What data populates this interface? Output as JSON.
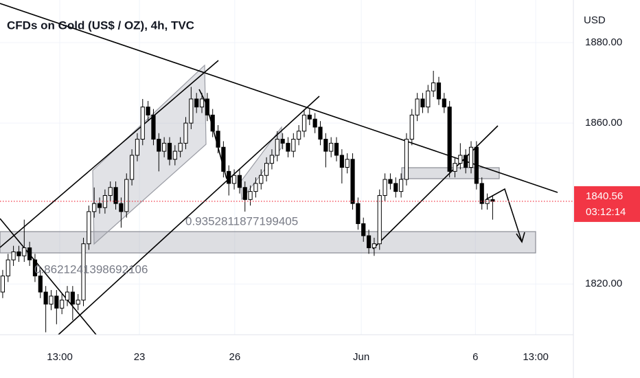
{
  "chart_data": {
    "type": "candlestick",
    "title": "CFDs on Gold (US$ / OZ), 4h, TVC",
    "y_axis_label": "USD",
    "countdown": "03:12:14",
    "annotations": [
      "0.9352811877199405",
      "0.8621241398692106"
    ],
    "up_color": "#ffffff",
    "down_color": "#000000",
    "wick_color": "#000000",
    "price_line_color": "#f23645",
    "open": [
      1818,
      1822,
      1826,
      1828,
      1827,
      1829,
      1826,
      1822,
      1818,
      1815,
      1817,
      1814,
      1816,
      1818,
      1815,
      1816,
      1830,
      1838,
      1840,
      1839,
      1842,
      1844,
      1840,
      1838,
      1846,
      1852,
      1856,
      1864,
      1862,
      1856,
      1853,
      1855,
      1851,
      1853,
      1855,
      1860,
      1866,
      1864,
      1866,
      1862,
      1858,
      1854,
      1848,
      1845,
      1847,
      1844,
      1841,
      1843,
      1845,
      1847,
      1850,
      1852,
      1856,
      1855,
      1853,
      1856,
      1858,
      1862,
      1861,
      1859,
      1856,
      1853,
      1855,
      1852,
      1849,
      1851,
      1840,
      1835,
      1832,
      1829,
      1830,
      1842,
      1846,
      1845,
      1843,
      1846,
      1856,
      1862,
      1866,
      1864,
      1868,
      1870,
      1866,
      1864,
      1848,
      1850,
      1852,
      1849,
      1854,
      1845,
      1840,
      1841
    ],
    "high": [
      1823.5,
      1827.5,
      1829.5,
      1829.5,
      1836,
      1830.5,
      1827.5,
      1823.5,
      1819.5,
      1818.5,
      1818.5,
      1817.5,
      1819.5,
      1819.5,
      1817.5,
      1831.5,
      1839.5,
      1844,
      1841.5,
      1843.5,
      1845.5,
      1845.5,
      1841.5,
      1847.5,
      1853.5,
      1857.5,
      1866,
      1865.5,
      1863.5,
      1857.5,
      1856.5,
      1856.5,
      1854.5,
      1856.5,
      1861.5,
      1869,
      1867.5,
      1867.5,
      1867.5,
      1863.5,
      1859.5,
      1855.5,
      1849.5,
      1848.5,
      1848.5,
      1845.5,
      1844.5,
      1846.5,
      1848.5,
      1851.5,
      1853.5,
      1858,
      1857.5,
      1856.5,
      1857.5,
      1859.5,
      1863.5,
      1863.5,
      1862.5,
      1860.5,
      1857.5,
      1856.5,
      1856.5,
      1853.5,
      1852.5,
      1852.5,
      1841.5,
      1836.5,
      1833.5,
      1831.5,
      1843.5,
      1847.5,
      1847.5,
      1846.5,
      1847.5,
      1857.5,
      1863.5,
      1867.5,
      1867.5,
      1869.5,
      1873,
      1871.5,
      1867.5,
      1865.5,
      1851.5,
      1855,
      1853.5,
      1855.5,
      1855.5,
      1846.5,
      1842.5,
      1842
    ],
    "low": [
      1816.5,
      1820.5,
      1824.5,
      1825.5,
      1825.5,
      1824.5,
      1820.5,
      1816.5,
      1808,
      1813.5,
      1810,
      1812.5,
      1814.5,
      1811,
      1813.5,
      1814.5,
      1828.5,
      1836.5,
      1837.5,
      1837.5,
      1840.5,
      1838.5,
      1834,
      1836.5,
      1844.5,
      1850.5,
      1854.5,
      1860.5,
      1854.5,
      1848,
      1851.5,
      1849.5,
      1849.5,
      1851.5,
      1853.5,
      1858.5,
      1862.5,
      1862.5,
      1860.5,
      1856.5,
      1852.5,
      1846.5,
      1842,
      1843.5,
      1842.5,
      1838,
      1839.5,
      1841.5,
      1843.5,
      1845.5,
      1848.5,
      1850.5,
      1853.5,
      1851.5,
      1851.5,
      1854.5,
      1856.5,
      1859.5,
      1857.5,
      1854.5,
      1849,
      1851.5,
      1850.5,
      1845,
      1847.5,
      1838.5,
      1833.5,
      1830.5,
      1827.5,
      1827,
      1828.5,
      1840.5,
      1843.5,
      1841.5,
      1841.5,
      1844.5,
      1854.5,
      1860.5,
      1862.5,
      1862.5,
      1866.5,
      1864.5,
      1862.5,
      1846.5,
      1846.5,
      1848.5,
      1847.5,
      1847.5,
      1843.5,
      1838.5,
      1838.5,
      1836
    ],
    "close": [
      1822,
      1826,
      1828,
      1827,
      1829,
      1826,
      1822,
      1818,
      1815,
      1817,
      1814,
      1816,
      1818,
      1815,
      1816,
      1830,
      1838,
      1840,
      1839,
      1842,
      1844,
      1840,
      1838,
      1846,
      1852,
      1856,
      1864,
      1862,
      1856,
      1853,
      1855,
      1851,
      1853,
      1855,
      1860,
      1866,
      1864,
      1866,
      1862,
      1858,
      1854,
      1848,
      1845,
      1847,
      1844,
      1841,
      1843,
      1845,
      1847,
      1850,
      1852,
      1856,
      1855,
      1853,
      1856,
      1858,
      1862,
      1861,
      1859,
      1856,
      1853,
      1855,
      1852,
      1849,
      1851,
      1840,
      1835,
      1832,
      1829,
      1830,
      1842,
      1846,
      1845,
      1843,
      1846,
      1856,
      1862,
      1866,
      1864,
      1868,
      1870,
      1866,
      1864,
      1848,
      1850,
      1852,
      1849,
      1854,
      1845,
      1840,
      1841,
      1840.56
    ],
    "xlim": [
      -0.5,
      106
    ],
    "xticks": [
      {
        "value": 10.6,
        "label": "13:00"
      },
      {
        "value": 25.4,
        "label": "23"
      },
      {
        "value": 43.1,
        "label": "26"
      },
      {
        "value": 66.6,
        "label": "Jun"
      },
      {
        "value": 87.8,
        "label": "6"
      },
      {
        "value": 99,
        "label": "13:00"
      }
    ],
    "ylim": [
      1807.4,
      1890.6
    ],
    "yticks": [
      {
        "value": 1820,
        "label": "1820.00"
      },
      {
        "value": 1860,
        "label": "1860.00"
      },
      {
        "value": 1880,
        "label": "1880.00"
      }
    ],
    "grid": true
  }
}
